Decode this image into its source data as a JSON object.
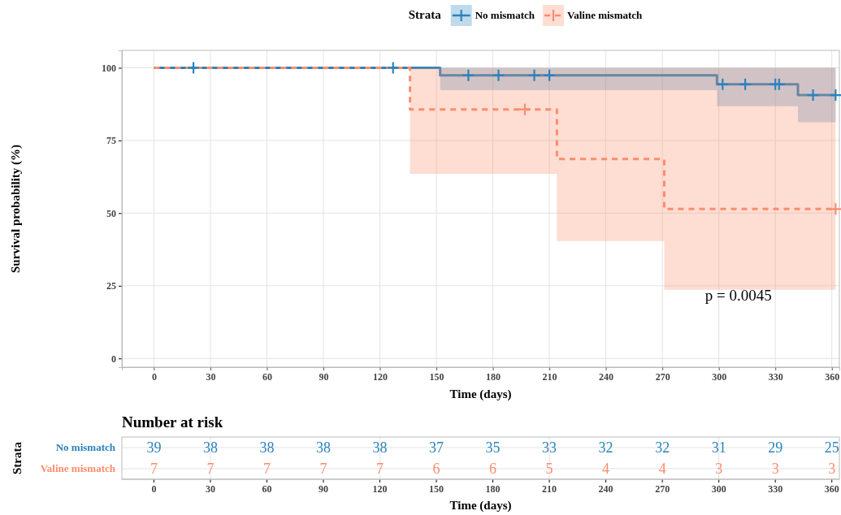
{
  "chart_data": [
    {
      "type": "step",
      "xlabel": "Time (days)",
      "ylabel": "Survival probability (%)",
      "legend_title": "Strata",
      "legend": "top",
      "grid": true,
      "xlim": [
        -17,
        364
      ],
      "xticks": [
        0,
        30,
        60,
        90,
        120,
        150,
        180,
        210,
        240,
        270,
        300,
        330,
        360
      ],
      "ylim": [
        -3,
        106
      ],
      "yticks": [
        0,
        25,
        50,
        75,
        100
      ],
      "annotations": [
        "p = 0.0045"
      ],
      "series": [
        {
          "name": "No mismatch",
          "color": "#2a83bd",
          "line_style": "solid",
          "x": [
            0,
            152,
            299,
            342,
            362
          ],
          "values": [
            100,
            97.4,
            94.3,
            90.6,
            90.6
          ],
          "lower": [
            100,
            92.3,
            86.8,
            81.3,
            81.3
          ],
          "upper": [
            100,
            100,
            100,
            100,
            100
          ]
        },
        {
          "name": "Valine mismatch",
          "color": "#fc8d6c",
          "line_style": "dashed",
          "x": [
            0,
            136,
            214,
            271,
            362
          ],
          "values": [
            100,
            85.7,
            68.6,
            51.4,
            51.4
          ],
          "lower": [
            100,
            63.5,
            40.4,
            23.6,
            23.6
          ],
          "upper": [
            100,
            100,
            100,
            100,
            100
          ]
        },
        {
          "type": "scatter",
          "marker": "cross",
          "color": "#2a83bd",
          "x": [
            21,
            127,
            167,
            183,
            202,
            210,
            302,
            314,
            330,
            332,
            350,
            362
          ],
          "values": [
            100,
            100,
            97.4,
            97.4,
            97.4,
            97.4,
            94.3,
            94.3,
            94.3,
            94.3,
            90.6,
            90.6
          ]
        },
        {
          "type": "scatter",
          "marker": "cross",
          "color": "#fc8d6c",
          "x": [
            197,
            362
          ],
          "values": [
            85.7,
            51.4
          ]
        }
      ]
    },
    {
      "type": "heatmap",
      "title": "Number at risk",
      "xlabel": "Time (days)",
      "ylabel": "Strata",
      "grid": true,
      "data_labels": true,
      "categories": [
        "0",
        "30",
        "60",
        "90",
        "120",
        "150",
        "180",
        "210",
        "240",
        "270",
        "300",
        "330",
        "360"
      ],
      "y_categories": [
        "No mismatch",
        "Valine mismatch"
      ],
      "colors": [
        "#2a83bd",
        "#fc8d6c"
      ],
      "cells": [
        [
          39,
          38,
          38,
          38,
          38,
          37,
          35,
          33,
          32,
          32,
          31,
          29,
          25
        ],
        [
          7,
          7,
          7,
          7,
          7,
          6,
          6,
          5,
          4,
          4,
          3,
          3,
          3
        ]
      ]
    }
  ]
}
